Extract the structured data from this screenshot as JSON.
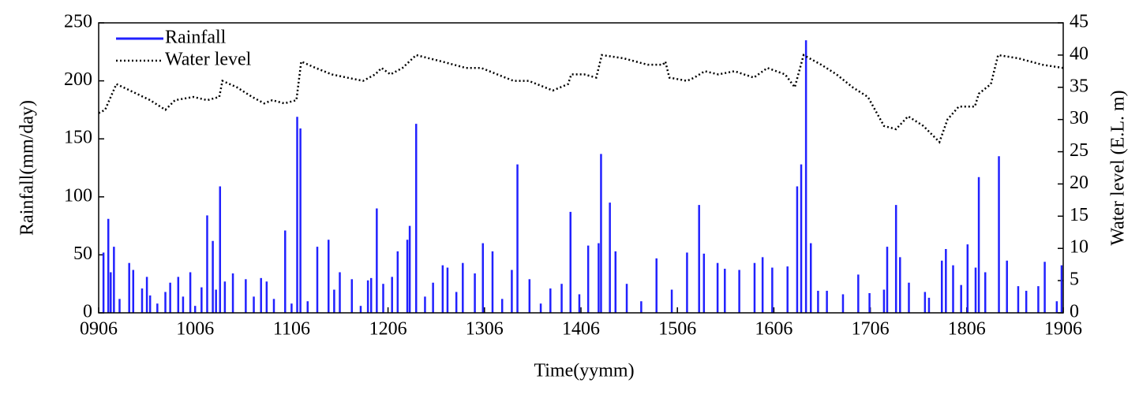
{
  "chart_data": {
    "type": "line",
    "xlabel": "Time(yymm)",
    "ylabel": "Rainfall(mm/day)",
    "y2label": "Water level (E.L. m)",
    "xlim": [
      0,
      120
    ],
    "xticks": [
      {
        "value": 0,
        "label": "0906"
      },
      {
        "value": 12,
        "label": "1006"
      },
      {
        "value": 24,
        "label": "1106"
      },
      {
        "value": 36,
        "label": "1206"
      },
      {
        "value": 48,
        "label": "1306"
      },
      {
        "value": 60,
        "label": "1406"
      },
      {
        "value": 72,
        "label": "1506"
      },
      {
        "value": 84,
        "label": "1606"
      },
      {
        "value": 96,
        "label": "1706"
      },
      {
        "value": 108,
        "label": "1806"
      },
      {
        "value": 120,
        "label": "1906"
      }
    ],
    "ylim": [
      0,
      250
    ],
    "yticks": [
      0,
      50,
      100,
      150,
      200,
      250
    ],
    "y2lim": [
      0,
      45
    ],
    "y2ticks": [
      0,
      5,
      10,
      15,
      20,
      25,
      30,
      35,
      40,
      45
    ],
    "legend": "upper left",
    "series": [
      {
        "name": "Rainfall",
        "color": "#2121ff",
        "mark": "impulse",
        "axis": "y",
        "x": [
          0.6,
          1.2,
          1.5,
          1.9,
          2.6,
          3.8,
          4.3,
          5.4,
          6.0,
          6.4,
          7.3,
          8.3,
          8.9,
          9.9,
          10.5,
          11.4,
          12.0,
          12.8,
          13.5,
          14.2,
          14.6,
          15.1,
          15.7,
          16.7,
          18.3,
          19.3,
          20.2,
          20.9,
          21.8,
          23.2,
          24.0,
          24.7,
          25.1,
          26.0,
          27.2,
          28.6,
          29.3,
          30.0,
          31.5,
          32.6,
          33.5,
          33.9,
          34.6,
          35.4,
          36.5,
          37.2,
          38.4,
          38.7,
          39.5,
          40.6,
          41.6,
          42.8,
          43.4,
          44.5,
          45.3,
          46.8,
          47.8,
          49.0,
          50.2,
          51.4,
          52.1,
          53.6,
          55.0,
          56.2,
          57.6,
          58.7,
          59.8,
          60.9,
          62.2,
          62.5,
          63.6,
          64.3,
          65.7,
          67.5,
          69.4,
          71.3,
          73.2,
          74.7,
          75.3,
          77.0,
          77.9,
          79.7,
          81.6,
          82.6,
          83.8,
          85.7,
          86.9,
          87.4,
          88.0,
          88.6,
          89.5,
          90.6,
          92.6,
          94.5,
          95.9,
          97.7,
          98.1,
          99.2,
          99.7,
          100.8,
          102.8,
          103.3,
          104.9,
          105.4,
          106.3,
          107.3,
          108.1,
          109.1,
          109.5,
          110.3,
          112.0,
          113.0,
          114.4,
          115.4,
          116.9,
          117.7,
          119.2,
          119.8
        ],
        "values": [
          52,
          81,
          35,
          57,
          12,
          43,
          37,
          21,
          31,
          15,
          8,
          18,
          26,
          31,
          14,
          35,
          6,
          22,
          84,
          62,
          20,
          109,
          27,
          34,
          29,
          14,
          30,
          27,
          12,
          71,
          8,
          169,
          159,
          10,
          57,
          63,
          20,
          35,
          29,
          6,
          28,
          30,
          90,
          25,
          31,
          53,
          63,
          75,
          163,
          14,
          26,
          41,
          39,
          18,
          43,
          34,
          60,
          53,
          12,
          37,
          128,
          29,
          8,
          21,
          25,
          87,
          16,
          58,
          60,
          137,
          95,
          53,
          25,
          10,
          47,
          20,
          52,
          93,
          51,
          43,
          38,
          37,
          43,
          48,
          39,
          40,
          109,
          128,
          235,
          60,
          19,
          19,
          16,
          33,
          17,
          20,
          57,
          93,
          48,
          26,
          18,
          13,
          45,
          55,
          41,
          24,
          59,
          39,
          117,
          35,
          135,
          45,
          23,
          19,
          23,
          44,
          10,
          41
        ]
      },
      {
        "name": "Water level",
        "color": "#000000",
        "mark": "dotted",
        "axis": "y2",
        "x": [
          0,
          0.8,
          2.2,
          3.9,
          6.4,
          8.3,
          9.5,
          11.8,
          13.5,
          15.0,
          15.4,
          17.2,
          19.1,
          20.6,
          21.6,
          23.1,
          24.6,
          25.2,
          27.0,
          29.0,
          30.9,
          32.9,
          34.4,
          35.2,
          36.3,
          37.8,
          39.5,
          42.7,
          45.7,
          47.6,
          49.6,
          51.6,
          53.5,
          56.5,
          58.4,
          58.8,
          60.4,
          61.9,
          62.6,
          65.3,
          68.3,
          70.2,
          70.5,
          71.0,
          73.2,
          74.1,
          75.4,
          77.1,
          79.1,
          81.5,
          83.2,
          85.4,
          86.6,
          87.7,
          89.9,
          91.8,
          93.8,
          95.7,
          97.7,
          99.2,
          100.7,
          102.6,
          104.6,
          105.6,
          107.0,
          109.0,
          109.5,
          111.0,
          111.9,
          114.4,
          117.4,
          120
        ],
        "values": [
          31,
          31.5,
          35.5,
          34.5,
          33,
          31.5,
          33,
          33.5,
          33,
          33.5,
          36,
          35,
          33.5,
          32.5,
          33,
          32.5,
          33,
          39,
          38,
          37,
          36.5,
          36,
          37,
          38,
          37,
          38,
          40,
          39,
          38,
          38,
          37,
          36,
          36,
          34.5,
          35.5,
          37,
          37,
          36.5,
          40,
          39.5,
          38.5,
          38.5,
          39,
          36.5,
          36,
          36.5,
          37.5,
          37,
          37.5,
          36.5,
          38,
          37,
          35,
          40,
          38.5,
          37,
          35,
          33.5,
          29,
          28.5,
          30.5,
          29,
          26.5,
          30,
          32,
          32,
          34,
          35.5,
          40,
          39.5,
          38.5,
          38
        ]
      }
    ]
  }
}
